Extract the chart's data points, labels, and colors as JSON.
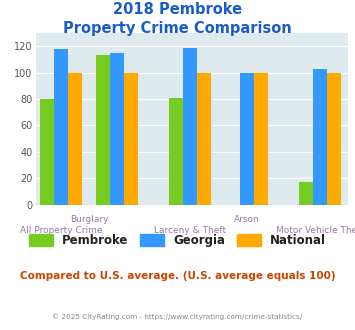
{
  "title_line1": "2018 Pembroke",
  "title_line2": "Property Crime Comparison",
  "groups": [
    {
      "name": "All Property Crime",
      "pembroke": 80,
      "georgia": 118,
      "national": 100
    },
    {
      "name": "Burglary",
      "pembroke": 113,
      "georgia": 115,
      "national": 100
    },
    {
      "name": "Larceny & Theft",
      "pembroke": 81,
      "georgia": 119,
      "national": 100
    },
    {
      "name": "Arson",
      "pembroke": 0,
      "georgia": 100,
      "national": 100
    },
    {
      "name": "Motor Vehicle Theft",
      "pembroke": 17,
      "georgia": 103,
      "national": 100
    }
  ],
  "group_positions": [
    0,
    1,
    2.3,
    3.3,
    4.6
  ],
  "color_pembroke": "#77cc22",
  "color_georgia": "#3399ff",
  "color_national": "#ffaa00",
  "ylim": [
    0,
    130
  ],
  "yticks": [
    0,
    20,
    40,
    60,
    80,
    100,
    120
  ],
  "bg_color": "#deeaee",
  "title_color": "#1a5cc8",
  "xlabel_color": "#9977aa",
  "footer_text": "Compared to U.S. average. (U.S. average equals 100)",
  "footer_color": "#cc4400",
  "credit_text": "© 2025 CityRating.com - https://www.cityrating.com/crime-statistics/",
  "credit_color": "#888888",
  "legend_labels": [
    "Pembroke",
    "Georgia",
    "National"
  ],
  "top_labels": [
    [
      "Burglary",
      0.5
    ],
    [
      "Arson",
      3.3
    ]
  ],
  "bottom_labels": [
    [
      "All Property Crime",
      0
    ],
    [
      "Larceny & Theft",
      2.3
    ],
    [
      "Motor Vehicle Theft",
      4.6
    ]
  ]
}
